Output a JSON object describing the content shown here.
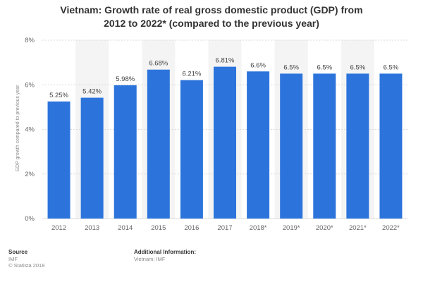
{
  "title_line1": "Vietnam: Growth rate of real gross domestic product (GDP) from",
  "title_line2": "2012 to 2022* (compared to the previous year)",
  "footer": {
    "source_heading": "Source",
    "source_name": "IMF",
    "copyright": "© Statista 2018",
    "additional_heading": "Additional Information:",
    "additional_text": "Vietnam; IMF"
  },
  "colors": {
    "bar": "#2c74dc",
    "grid": "#d9d9d9",
    "stripe": "#f4f4f4"
  },
  "chart_data": {
    "type": "bar",
    "categories": [
      "2012",
      "2013",
      "2014",
      "2015",
      "2016",
      "2017",
      "2018*",
      "2019*",
      "2020*",
      "2021*",
      "2022*"
    ],
    "values": [
      5.25,
      5.42,
      5.98,
      6.68,
      6.21,
      6.81,
      6.6,
      6.5,
      6.5,
      6.5,
      6.5
    ],
    "value_labels": [
      "5.25%",
      "5.42%",
      "5.98%",
      "6.68%",
      "6.21%",
      "6.81%",
      "6.6%",
      "6.5%",
      "6.5%",
      "6.5%",
      "6.5%"
    ],
    "title": "Vietnam: Growth rate of real gross domestic product (GDP) from 2012 to 2022* (compared to the previous year)",
    "xlabel": "",
    "ylabel": "GDP growth compared to previous year",
    "ylim": [
      0,
      8
    ],
    "yticks": [
      0,
      2,
      4,
      6,
      8
    ],
    "ytick_labels": [
      "0%",
      "2%",
      "4%",
      "6%",
      "8%"
    ],
    "grid": true,
    "legend": "none"
  }
}
